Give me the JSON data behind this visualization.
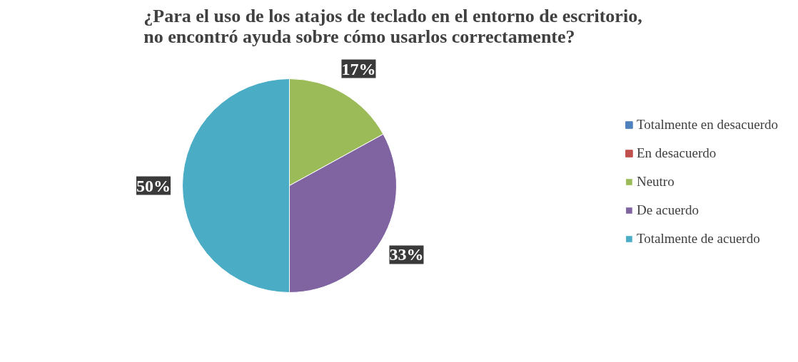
{
  "chart_data": {
    "type": "pie",
    "title": "¿Para el uso de los atajos de teclado en el entorno de escritorio,\nno encontró ayuda sobre cómo usarlos correctamente?",
    "categories": [
      "Totalmente en desacuerdo",
      "En desacuerdo",
      "Neutro",
      "De acuerdo",
      "Totalmente de acuerdo"
    ],
    "values": [
      0,
      0,
      17,
      33,
      50
    ],
    "colors": [
      "#4f81bd",
      "#c0504d",
      "#9bbb59",
      "#8064a2",
      "#4bacc6"
    ],
    "value_labels": [
      null,
      null,
      "17%",
      "33%",
      "50%"
    ],
    "legend": "right"
  }
}
